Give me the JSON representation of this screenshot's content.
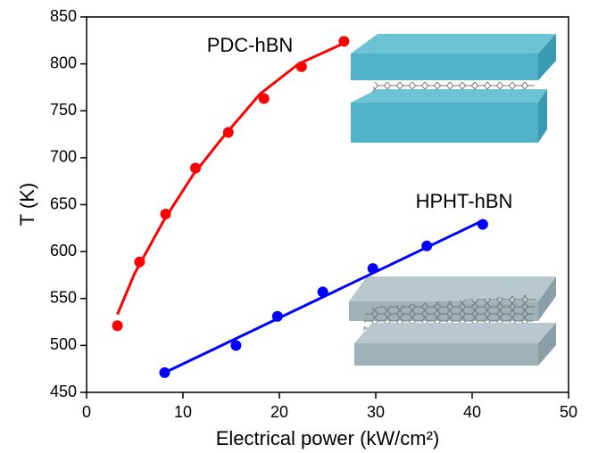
{
  "chart_data": {
    "type": "scatter",
    "x_label": "Electrical power (kW/cm²)",
    "y_label": "T (K)",
    "xlim": [
      0,
      50
    ],
    "xticks": [
      0,
      10,
      20,
      30,
      40,
      50
    ],
    "ylim": [
      450,
      850
    ],
    "yticks": [
      450,
      500,
      550,
      600,
      650,
      700,
      750,
      800,
      850
    ],
    "series": [
      {
        "name": "PDC-hBN",
        "color": "#ff0000",
        "x": [
          3.2,
          5.5,
          8.2,
          11.3,
          14.7,
          18.4,
          22.3,
          26.7
        ],
        "values": [
          521,
          589,
          640,
          689,
          727,
          763,
          797,
          824
        ],
        "line_x": [
          3.2,
          5,
          8,
          11,
          14,
          18,
          22,
          26.7
        ],
        "line_values": [
          533,
          577,
          633,
          681,
          720,
          768,
          800,
          822
        ]
      },
      {
        "name": "HPHT-hBN",
        "color": "#0000ff",
        "x": [
          8.1,
          15.5,
          19.8,
          24.5,
          29.7,
          35.3,
          41.1
        ],
        "values": [
          471,
          500,
          531,
          557,
          582,
          606,
          629
        ],
        "line_x": [
          8.1,
          41.1
        ],
        "line_values": [
          471,
          633
        ]
      }
    ]
  }
}
